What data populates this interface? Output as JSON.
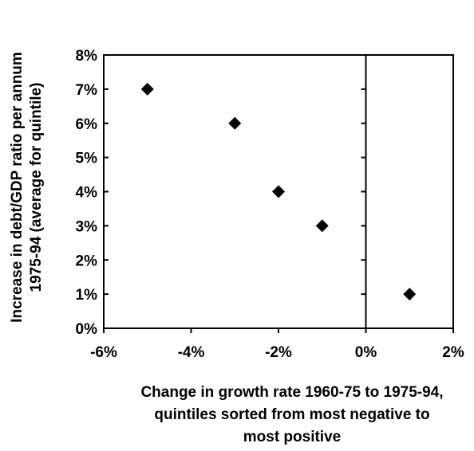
{
  "chart_data": {
    "type": "scatter",
    "title": "",
    "xlabel_lines": [
      "Change in growth rate 1960-75 to 1975-94,",
      "quintiles sorted from most negative to",
      "most positive"
    ],
    "ylabel_lines": [
      "Increase in debt/GDP ratio per annum",
      "1975-94 (average for quintile)"
    ],
    "xlim": [
      -6,
      2
    ],
    "ylim": [
      0,
      8
    ],
    "x_ticks": [
      -6,
      -4,
      -2,
      0,
      2
    ],
    "y_ticks": [
      0,
      1,
      2,
      3,
      4,
      5,
      6,
      7,
      8
    ],
    "x_tick_labels": [
      "-6%",
      "-4%",
      "-2%",
      "0%",
      "2%"
    ],
    "y_tick_labels": [
      "0%",
      "1%",
      "2%",
      "3%",
      "4%",
      "5%",
      "6%",
      "7%",
      "8%"
    ],
    "grid": false,
    "vertical_reference_line_at_x": 0,
    "marker": "diamond",
    "series": [
      {
        "x": [
          -5,
          -3,
          -2,
          -1,
          1
        ],
        "y": [
          7,
          6,
          4,
          3,
          1
        ]
      }
    ],
    "colors": {
      "marker": "#000000",
      "axis": "#000000",
      "background": "#ffffff"
    }
  }
}
